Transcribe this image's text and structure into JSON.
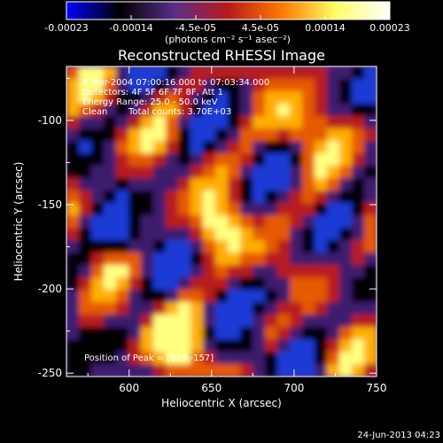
{
  "colorbar": {
    "tick_labels": [
      "-0.00023",
      "-0.00014",
      "-4.5e-05",
      "4.5e-05",
      "0.00014",
      "0.00023"
    ],
    "unit_label": "(photons cm⁻² s⁻¹ asec⁻²)",
    "colors": [
      "#0000ff",
      "#000000",
      "#5b2d8a",
      "#b81a1a",
      "#ff7a00",
      "#ffff66",
      "#ffffff"
    ]
  },
  "title": "Reconstructed RHESSI Image",
  "info": {
    "time_range": "6-Mar-2004 07:00:16.000 to 07:03:34.000",
    "detectors": "Detectors: 4F 5F 6F 7F 8F, Att 1",
    "energy_range": "Energy Range: 25.0 - 50.0 keV",
    "clean": "Clean",
    "total_counts": "Total counts: 3.70E+03",
    "peak": "Position of Peak = [629,-157]"
  },
  "axes": {
    "x_label": "Heliocentric X (arcsec)",
    "y_label": "Heliocentric Y (arcsec)",
    "x_ticks": [
      "600",
      "650",
      "700",
      "750"
    ],
    "y_ticks": [
      "-100",
      "-150",
      "-200",
      "-250"
    ],
    "x_range": [
      562,
      750
    ],
    "y_range": [
      -252,
      -68
    ]
  },
  "timestamp": "24-Jun-2013 04:23"
}
